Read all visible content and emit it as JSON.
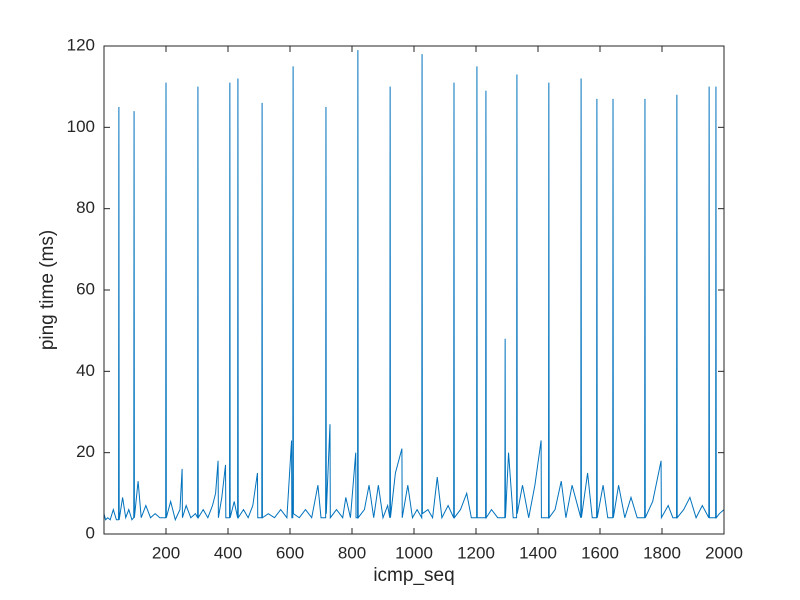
{
  "chart_data": {
    "type": "line",
    "xlabel": "icmp_seq",
    "ylabel": "ping time (ms)",
    "color": "#0072bd",
    "xlim": [
      0,
      2000
    ],
    "xticks": [
      200,
      400,
      600,
      800,
      1000,
      1200,
      1400,
      1600,
      1800,
      2000
    ],
    "ylim": [
      0,
      120
    ],
    "yticks": [
      0,
      20,
      40,
      60,
      80,
      100,
      120
    ],
    "grid": false,
    "x": [
      0,
      5,
      12,
      20,
      30,
      40,
      47,
      48,
      49,
      60,
      70,
      80,
      90,
      96,
      97,
      98,
      110,
      120,
      135,
      150,
      165,
      180,
      199,
      200,
      201,
      215,
      230,
      245,
      252,
      253,
      265,
      280,
      295,
      302,
      303,
      304,
      320,
      335,
      350,
      360,
      368,
      369,
      380,
      392,
      393,
      405,
      406,
      407,
      420,
      431,
      432,
      433,
      450,
      465,
      480,
      495,
      496,
      509,
      510,
      511,
      530,
      550,
      570,
      590,
      605,
      606,
      609,
      610,
      611,
      630,
      650,
      670,
      690,
      700,
      715,
      716,
      717,
      729,
      730,
      750,
      770,
      780,
      795,
      812,
      813,
      818,
      819,
      820,
      840,
      855,
      870,
      885,
      900,
      915,
      922,
      923,
      924,
      940,
      961,
      962,
      980,
      995,
      1010,
      1025,
      1026,
      1027,
      1045,
      1060,
      1075,
      1090,
      1110,
      1128,
      1129,
      1130,
      1150,
      1170,
      1185,
      1202,
      1203,
      1204,
      1231,
      1232,
      1233,
      1250,
      1270,
      1293,
      1294,
      1295,
      1305,
      1320,
      1331,
      1332,
      1333,
      1350,
      1370,
      1390,
      1410,
      1411,
      1434,
      1435,
      1436,
      1455,
      1475,
      1490,
      1510,
      1538,
      1539,
      1540,
      1560,
      1575,
      1589,
      1590,
      1591,
      1610,
      1625,
      1641,
      1642,
      1643,
      1660,
      1680,
      1700,
      1720,
      1744,
      1745,
      1746,
      1770,
      1797,
      1798,
      1820,
      1835,
      1847,
      1848,
      1849,
      1870,
      1890,
      1910,
      1930,
      1951,
      1952,
      1953,
      1973,
      1974,
      1975,
      1985,
      2000
    ],
    "values": [
      5,
      3.5,
      4,
      3.5,
      6,
      3.5,
      3.5,
      105,
      3.5,
      9,
      4,
      6,
      3.5,
      4,
      104,
      4,
      13,
      4,
      7,
      4,
      5,
      4,
      4,
      111,
      4,
      8,
      3.5,
      6,
      16,
      4,
      7,
      4,
      5,
      4,
      110,
      4,
      6,
      4,
      7,
      10,
      18,
      4,
      9,
      17,
      4,
      4,
      111,
      4,
      8,
      4,
      112,
      4,
      6,
      4,
      7,
      15,
      4,
      4,
      106,
      4,
      5,
      4,
      6,
      4,
      23,
      4,
      4,
      115,
      5,
      4,
      6,
      4,
      12,
      4,
      4,
      105,
      5,
      27,
      4,
      6,
      4,
      9,
      4,
      20,
      4,
      4,
      119,
      4,
      6,
      12,
      4,
      12,
      4,
      7,
      4,
      110,
      4,
      15,
      21,
      4,
      12,
      4,
      6,
      4,
      118,
      5,
      6,
      4,
      14,
      4,
      7,
      4,
      111,
      4,
      6,
      10,
      4,
      4,
      115,
      4,
      4,
      109,
      4,
      6,
      4,
      4,
      48,
      4,
      20,
      4,
      4,
      113,
      5,
      12,
      4,
      12,
      23,
      4,
      4,
      111,
      4,
      6,
      13,
      4,
      12,
      4,
      112,
      4,
      15,
      4,
      4,
      107,
      4,
      12,
      4,
      4,
      107,
      4,
      12,
      4,
      9,
      4,
      4,
      107,
      4,
      8,
      18,
      4,
      7,
      4,
      4,
      108,
      4,
      6,
      9,
      4,
      7,
      4,
      110,
      4,
      4,
      110,
      4,
      5,
      6
    ]
  }
}
